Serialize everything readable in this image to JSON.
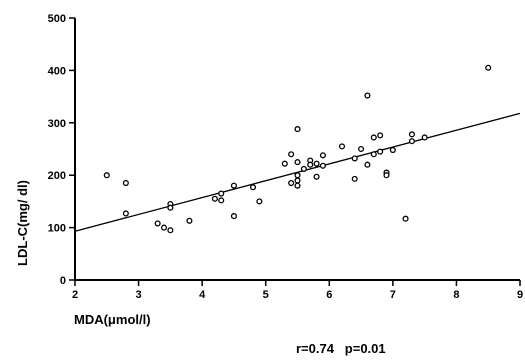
{
  "chart_data": {
    "type": "scatter",
    "xlabel": "MDA(μmol/l)",
    "ylabel": "LDL-C(mg/ dl)",
    "xlim": [
      2,
      9
    ],
    "ylim": [
      0,
      500
    ],
    "x_ticks": [
      "2",
      "3",
      "4",
      "5",
      "6",
      "7",
      "8",
      "9"
    ],
    "y_ticks": [
      "0",
      "100",
      "200",
      "300",
      "400",
      "500"
    ],
    "grid": false,
    "annotation": "r=0.74   p=0.01",
    "trendline": {
      "x": [
        2,
        9
      ],
      "y": [
        93,
        318
      ]
    },
    "series": [
      {
        "points": [
          [
            2.5,
            200
          ],
          [
            2.8,
            185
          ],
          [
            2.8,
            127
          ],
          [
            3.3,
            108
          ],
          [
            3.4,
            100
          ],
          [
            3.5,
            145
          ],
          [
            3.5,
            138
          ],
          [
            3.5,
            95
          ],
          [
            3.8,
            113
          ],
          [
            4.2,
            155
          ],
          [
            4.3,
            152
          ],
          [
            4.3,
            165
          ],
          [
            4.5,
            180
          ],
          [
            4.5,
            122
          ],
          [
            4.8,
            177
          ],
          [
            4.9,
            150
          ],
          [
            5.3,
            222
          ],
          [
            5.4,
            240
          ],
          [
            5.4,
            185
          ],
          [
            5.5,
            288
          ],
          [
            5.5,
            225
          ],
          [
            5.5,
            200
          ],
          [
            5.5,
            190
          ],
          [
            5.5,
            180
          ],
          [
            5.6,
            212
          ],
          [
            5.7,
            228
          ],
          [
            5.7,
            220
          ],
          [
            5.8,
            222
          ],
          [
            5.8,
            197
          ],
          [
            5.9,
            238
          ],
          [
            5.9,
            218
          ],
          [
            6.2,
            255
          ],
          [
            6.4,
            232
          ],
          [
            6.4,
            193
          ],
          [
            6.5,
            250
          ],
          [
            6.6,
            352
          ],
          [
            6.6,
            220
          ],
          [
            6.7,
            272
          ],
          [
            6.7,
            240
          ],
          [
            6.8,
            276
          ],
          [
            6.8,
            245
          ],
          [
            6.9,
            205
          ],
          [
            6.9,
            200
          ],
          [
            7.0,
            248
          ],
          [
            7.2,
            117
          ],
          [
            7.3,
            278
          ],
          [
            7.3,
            265
          ],
          [
            7.5,
            272
          ],
          [
            8.5,
            405
          ]
        ]
      }
    ]
  }
}
